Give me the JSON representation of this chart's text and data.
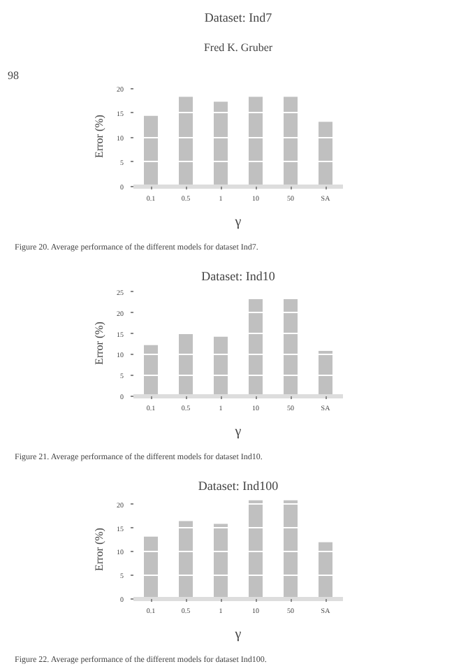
{
  "chart_data": [
    {
      "type": "bar",
      "title": "Dataset: Ind7",
      "xlabel": "γ",
      "ylabel": "Error (%)",
      "categories": [
        "0.1",
        "0.5",
        "1",
        "10",
        "50",
        "SA"
      ],
      "values": [
        14.4,
        18.3,
        17.3,
        18.3,
        18.3,
        13.2
      ],
      "color": "#c0c0c0",
      "ylim": [
        0,
        20.5
      ],
      "yticks": [
        0,
        5,
        10,
        15,
        20
      ],
      "grid": "y",
      "annotations": [
        "98",
        "Fred K. Gruber",
        "Figure 20. Average performance of the different models for dataset Ind7."
      ]
    },
    {
      "type": "bar",
      "title": "Dataset: Ind10",
      "xlabel": "γ",
      "ylabel": "Error (%)",
      "categories": [
        "0.1",
        "0.5",
        "1",
        "10",
        "50",
        "SA"
      ],
      "values": [
        12.3,
        15.0,
        14.3,
        23.3,
        23.3,
        10.9
      ],
      "color": "#c0c0c0",
      "ylim": [
        0,
        25.5
      ],
      "yticks": [
        0,
        5,
        10,
        15,
        20,
        25
      ],
      "grid": "y",
      "annotations": [
        "Figure 21. Average performance of the different models for dataset Ind10."
      ]
    },
    {
      "type": "bar",
      "title": "Dataset: Ind100",
      "xlabel": "γ",
      "ylabel": "Error (%)",
      "categories": [
        "0.1",
        "0.5",
        "1",
        "10",
        "50",
        "SA"
      ],
      "values": [
        13.2,
        16.5,
        15.9,
        20.9,
        20.9,
        12.0
      ],
      "color": "#c0c0c0",
      "ylim": [
        0,
        21
      ],
      "yticks": [
        0,
        5,
        10,
        15,
        20
      ],
      "grid": "y",
      "annotations": [
        "Figure 22. Average performance of the different models for dataset Ind100."
      ]
    }
  ]
}
